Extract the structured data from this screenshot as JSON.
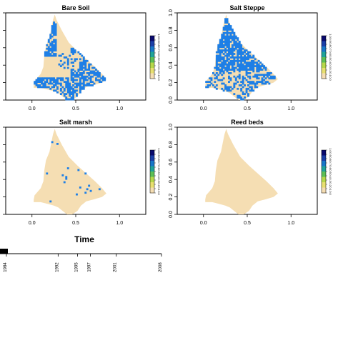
{
  "chart_data": [
    {
      "type": "heatmap",
      "title": "Bare Soil",
      "xlim": [
        -0.3,
        1.3
      ],
      "ylim": [
        0,
        1
      ],
      "x_ticks": [
        "0.0",
        "0.5",
        "1.0"
      ],
      "y_ticks": [],
      "classes": [
        {
          "name": "absent",
          "color": "#f5deb3"
        },
        {
          "name": "present",
          "color": "#1e7fe6"
        }
      ],
      "blue_coverage": 0.42
    },
    {
      "type": "heatmap",
      "title": "Salt Steppe",
      "xlim": [
        -0.3,
        1.3
      ],
      "ylim": [
        0,
        1
      ],
      "x_ticks": [
        "0.0",
        "0.5",
        "1.0"
      ],
      "y_ticks": [
        "0.0",
        "0.2",
        "0.4",
        "0.6",
        "0.8",
        "1.0"
      ],
      "classes": [
        {
          "name": "absent",
          "color": "#f5deb3"
        },
        {
          "name": "present",
          "color": "#1e7fe6"
        }
      ],
      "blue_coverage": 0.55
    },
    {
      "type": "heatmap",
      "title": "Salt marsh",
      "xlim": [
        -0.3,
        1.3
      ],
      "ylim": [
        0,
        1
      ],
      "x_ticks": [
        "0.0",
        "0.5",
        "1.0"
      ],
      "y_ticks": [],
      "classes": [
        {
          "name": "absent",
          "color": "#f5deb3"
        },
        {
          "name": "present",
          "color": "#1e7fe6"
        }
      ],
      "blue_coverage": 0.02
    },
    {
      "type": "heatmap",
      "title": "Reed beds",
      "xlim": [
        -0.3,
        1.3
      ],
      "ylim": [
        0,
        1
      ],
      "x_ticks": [
        "0.0",
        "0.5",
        "1.0"
      ],
      "y_ticks": [
        "0.0",
        "0.2",
        "0.4",
        "0.6",
        "0.8",
        "1.0"
      ],
      "classes": [
        {
          "name": "absent",
          "color": "#f5deb3"
        },
        {
          "name": "present",
          "color": "#1e7fe6"
        }
      ],
      "blue_coverage": 0
    }
  ],
  "legend_ramp": [
    "#f5deb3",
    "#e8e070",
    "#b6d84a",
    "#5cbf56",
    "#1fa39a",
    "#1877c9",
    "#1b3fa8",
    "#0a0a6e"
  ],
  "legend_ticks": [
    "0.0",
    "0.1",
    "0.2",
    "0.3",
    "0.4",
    "0.5",
    "0.6",
    "0.7",
    "0.8",
    "0.9",
    "1.0"
  ],
  "timeline": {
    "title": "Time",
    "years": [
      "1984",
      "1992",
      "1995",
      "1997",
      "2001",
      "2008"
    ],
    "range": [
      1984,
      2008
    ],
    "current_year": 1984
  }
}
